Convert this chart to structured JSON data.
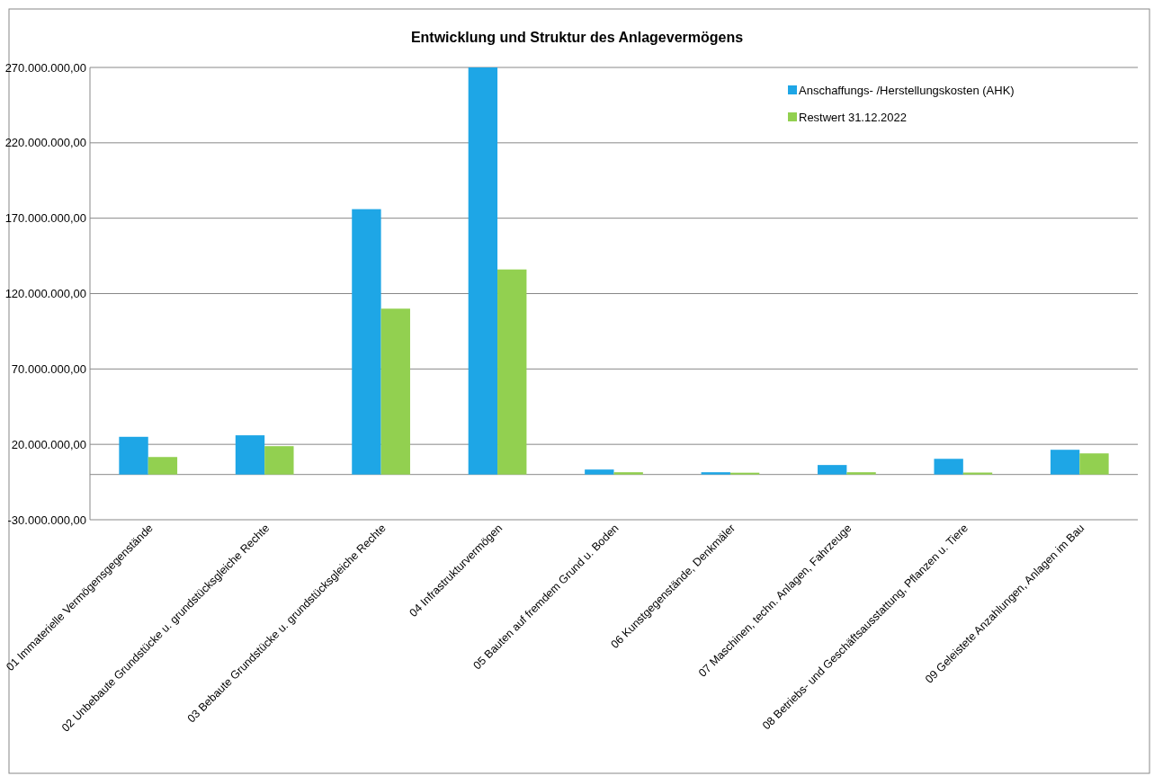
{
  "chart_data": {
    "type": "bar",
    "title": "Entwicklung und Struktur des Anlagevermögens",
    "categories": [
      "01 Immaterielle Vermögensgegenstände",
      "02 Unbebaute Grundstücke u. grundstücksgleiche Rechte",
      "03 Bebaute Grundstücke u. grundstücksgleiche Rechte",
      "04 Infrastrukturvermögen",
      "05 Bauten auf fremdem Grund u. Boden",
      "06 Kunstgegenstände, Denkmäler",
      "07 Maschinen, techn. Anlagen, Fahrzeuge",
      "08 Betriebs- und Geschäftsausstattung, Pflanzen u. Tiere",
      "09 Geleistete Anzahlungen, Anlagen im Bau"
    ],
    "series": [
      {
        "name": "Anschaffungs- /Herstellungskosten (AHK)",
        "color": "#1ea6e6",
        "values": [
          25000000,
          26000000,
          176000000,
          270000000,
          3300000,
          1500000,
          6300000,
          10400000,
          16400000
        ]
      },
      {
        "name": "Restwert 31.12.2022",
        "color": "#92d050",
        "values": [
          11600000,
          18800000,
          110000000,
          136000000,
          1500000,
          1200000,
          1500000,
          1300000,
          14000000
        ]
      }
    ],
    "ylim": [
      -30000000,
      270000000
    ],
    "yticks": [
      {
        "value": -30000000,
        "label": "-30.000.000,00"
      },
      {
        "value": 20000000,
        "label": "20.000.000,00"
      },
      {
        "value": 70000000,
        "label": "70.000.000,00"
      },
      {
        "value": 120000000,
        "label": "120.000.000,00"
      },
      {
        "value": 170000000,
        "label": "170.000.000,00"
      },
      {
        "value": 220000000,
        "label": "220.000.000,00"
      },
      {
        "value": 270000000,
        "label": "270.000.000,00"
      }
    ],
    "grid": "y",
    "legend": "top right"
  }
}
